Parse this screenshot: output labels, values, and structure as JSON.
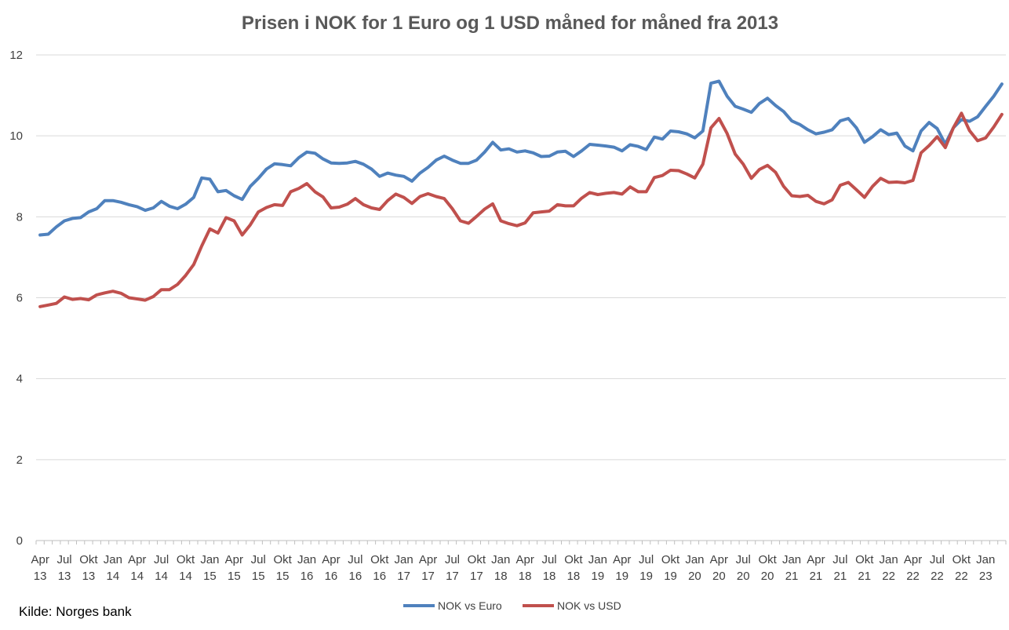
{
  "chart_data": {
    "type": "line",
    "title": "Prisen i NOK for 1 Euro og 1 USD måned for måned fra 2013",
    "source": "Kilde: Norges bank",
    "xlabel": "",
    "ylabel": "",
    "ylim": [
      0,
      12
    ],
    "yticks": [
      "0",
      "2",
      "4",
      "6",
      "8",
      "10",
      "12"
    ],
    "grid": "horizontal",
    "legend_position": "bottom",
    "x_tick_labels": [
      {
        "month": "Apr",
        "year": "13"
      },
      {
        "month": "Jul",
        "year": "13"
      },
      {
        "month": "Okt",
        "year": "13"
      },
      {
        "month": "Jan",
        "year": "14"
      },
      {
        "month": "Apr",
        "year": "14"
      },
      {
        "month": "Jul",
        "year": "14"
      },
      {
        "month": "Okt",
        "year": "14"
      },
      {
        "month": "Jan",
        "year": "15"
      },
      {
        "month": "Apr",
        "year": "15"
      },
      {
        "month": "Jul",
        "year": "15"
      },
      {
        "month": "Okt",
        "year": "15"
      },
      {
        "month": "Jan",
        "year": "16"
      },
      {
        "month": "Apr",
        "year": "16"
      },
      {
        "month": "Jul",
        "year": "16"
      },
      {
        "month": "Okt",
        "year": "16"
      },
      {
        "month": "Jan",
        "year": "17"
      },
      {
        "month": "Apr",
        "year": "17"
      },
      {
        "month": "Jul",
        "year": "17"
      },
      {
        "month": "Okt",
        "year": "17"
      },
      {
        "month": "Jan",
        "year": "18"
      },
      {
        "month": "Apr",
        "year": "18"
      },
      {
        "month": "Jul",
        "year": "18"
      },
      {
        "month": "Okt",
        "year": "18"
      },
      {
        "month": "Jan",
        "year": "19"
      },
      {
        "month": "Apr",
        "year": "19"
      },
      {
        "month": "Jul",
        "year": "19"
      },
      {
        "month": "Okt",
        "year": "19"
      },
      {
        "month": "Jan",
        "year": "20"
      },
      {
        "month": "Apr",
        "year": "20"
      },
      {
        "month": "Jul",
        "year": "20"
      },
      {
        "month": "Okt",
        "year": "20"
      },
      {
        "month": "Jan",
        "year": "21"
      },
      {
        "month": "Apr",
        "year": "21"
      },
      {
        "month": "Jul",
        "year": "21"
      },
      {
        "month": "Okt",
        "year": "21"
      },
      {
        "month": "Jan",
        "year": "22"
      },
      {
        "month": "Apr",
        "year": "22"
      },
      {
        "month": "Jul",
        "year": "22"
      },
      {
        "month": "Okt",
        "year": "22"
      },
      {
        "month": "Jan",
        "year": "23"
      }
    ],
    "series": [
      {
        "name": "NOK vs Euro",
        "color": "#4f81bd",
        "values": [
          7.55,
          7.57,
          7.75,
          7.9,
          7.96,
          7.98,
          8.12,
          8.2,
          8.4,
          8.4,
          8.36,
          8.3,
          8.25,
          8.16,
          8.22,
          8.38,
          8.26,
          8.2,
          8.31,
          8.48,
          8.96,
          8.93,
          8.62,
          8.65,
          8.52,
          8.43,
          8.75,
          8.95,
          9.18,
          9.31,
          9.29,
          9.26,
          9.46,
          9.6,
          9.57,
          9.43,
          9.33,
          9.32,
          9.33,
          9.37,
          9.3,
          9.18,
          9.0,
          9.08,
          9.03,
          9.0,
          8.88,
          9.08,
          9.22,
          9.4,
          9.5,
          9.4,
          9.32,
          9.32,
          9.4,
          9.6,
          9.84,
          9.65,
          9.68,
          9.6,
          9.63,
          9.58,
          9.49,
          9.5,
          9.6,
          9.62,
          9.49,
          9.63,
          9.79,
          9.77,
          9.75,
          9.72,
          9.63,
          9.78,
          9.74,
          9.66,
          9.97,
          9.92,
          10.12,
          10.1,
          10.05,
          9.95,
          10.12,
          11.3,
          11.35,
          10.98,
          10.73,
          10.66,
          10.58,
          10.8,
          10.93,
          10.75,
          10.6,
          10.37,
          10.28,
          10.15,
          10.05,
          10.09,
          10.15,
          10.37,
          10.43,
          10.2,
          9.84,
          9.98,
          10.15,
          10.03,
          10.07,
          9.75,
          9.63,
          10.12,
          10.33,
          10.18,
          9.8,
          10.2,
          10.4,
          10.36,
          10.47,
          10.73,
          10.98,
          11.28
        ]
      },
      {
        "name": "NOK vs USD",
        "color": "#c0504d",
        "values": [
          5.78,
          5.82,
          5.86,
          6.02,
          5.96,
          5.98,
          5.95,
          6.07,
          6.12,
          6.16,
          6.11,
          6.0,
          5.97,
          5.94,
          6.03,
          6.2,
          6.2,
          6.33,
          6.55,
          6.82,
          7.28,
          7.7,
          7.6,
          7.98,
          7.9,
          7.55,
          7.8,
          8.12,
          8.23,
          8.3,
          8.28,
          8.62,
          8.7,
          8.82,
          8.62,
          8.49,
          8.22,
          8.24,
          8.31,
          8.45,
          8.3,
          8.22,
          8.18,
          8.4,
          8.56,
          8.48,
          8.33,
          8.5,
          8.57,
          8.5,
          8.45,
          8.2,
          7.9,
          7.84,
          8.01,
          8.19,
          8.32,
          7.9,
          7.83,
          7.78,
          7.85,
          8.1,
          8.12,
          8.14,
          8.3,
          8.27,
          8.27,
          8.46,
          8.6,
          8.55,
          8.58,
          8.6,
          8.56,
          8.74,
          8.62,
          8.62,
          8.97,
          9.02,
          9.15,
          9.14,
          9.06,
          8.96,
          9.3,
          10.2,
          10.43,
          10.06,
          9.55,
          9.3,
          8.95,
          9.17,
          9.27,
          9.1,
          8.75,
          8.52,
          8.5,
          8.53,
          8.38,
          8.32,
          8.42,
          8.78,
          8.85,
          8.67,
          8.48,
          8.75,
          8.95,
          8.85,
          8.86,
          8.84,
          8.9,
          9.58,
          9.76,
          9.98,
          9.71,
          10.2,
          10.56,
          10.13,
          9.88,
          9.95,
          10.22,
          10.53
        ]
      }
    ]
  }
}
